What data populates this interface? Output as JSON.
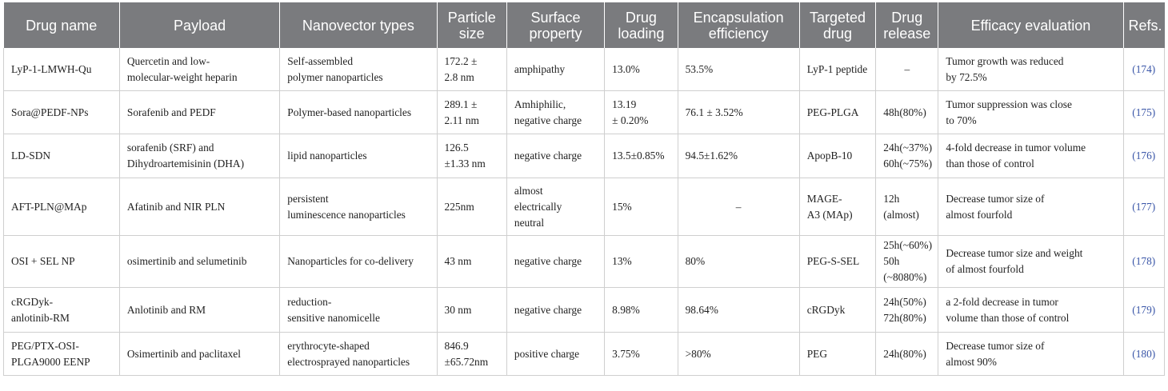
{
  "table": {
    "headers": [
      "Drug name",
      "Payload",
      "Nanovector types",
      "Particle size",
      "Surface property",
      "Drug loading",
      "Encapsulation efficiency",
      "Targeted drug",
      "Drug release",
      "Efficacy evaluation",
      "Refs."
    ],
    "rows": [
      {
        "drug_name": [
          "LyP-1-LMWH-Qu"
        ],
        "payload": [
          "Quercetin and low-",
          "molecular-weight heparin"
        ],
        "nanovector": [
          "Self-assembled",
          "polymer nanoparticles"
        ],
        "particle_size": [
          "172.2 ±",
          "2.8 nm"
        ],
        "surface": [
          "amphipathy"
        ],
        "loading": [
          "13.0%"
        ],
        "encapsulation": [
          "53.5%"
        ],
        "targeted": [
          "LyP-1 peptide"
        ],
        "release": [
          "–"
        ],
        "efficacy": [
          "Tumor growth was reduced",
          "by 72.5%"
        ],
        "ref": "(174)"
      },
      {
        "drug_name": [
          "Sora@PEDF-NPs"
        ],
        "payload": [
          "Sorafenib and PEDF"
        ],
        "nanovector": [
          "Polymer-based nanoparticles"
        ],
        "particle_size": [
          "289.1 ±",
          "2.11 nm"
        ],
        "surface": [
          "Amhiphilic,",
          "negative charge"
        ],
        "loading": [
          "13.19",
          "± 0.20%"
        ],
        "encapsulation": [
          "76.1 ± 3.52%"
        ],
        "targeted": [
          "PEG-PLGA"
        ],
        "release": [
          "48h(80%)"
        ],
        "efficacy": [
          "Tumor suppression was close",
          "to 70%"
        ],
        "ref": "(175)"
      },
      {
        "drug_name": [
          "LD-SDN"
        ],
        "payload": [
          "sorafenib (SRF) and",
          "Dihydroartemisinin (DHA)"
        ],
        "nanovector": [
          "lipid nanoparticles"
        ],
        "particle_size": [
          "126.5",
          "±1.33 nm"
        ],
        "surface": [
          "negative charge"
        ],
        "loading": [
          "13.5±0.85%"
        ],
        "encapsulation": [
          "94.5±1.62%"
        ],
        "targeted": [
          "ApopB-10"
        ],
        "release": [
          "24h(~37%)",
          "60h(~75%)"
        ],
        "efficacy": [
          "4-fold decrease in tumor volume",
          "than those of control"
        ],
        "ref": "(176)"
      },
      {
        "drug_name": [
          "AFT-PLN@MAp"
        ],
        "payload": [
          "Afatinib and NIR PLN"
        ],
        "nanovector": [
          "persistent",
          "luminescence nanoparticles"
        ],
        "particle_size": [
          "225nm"
        ],
        "surface": [
          "almost",
          "electrically",
          "neutral"
        ],
        "loading": [
          "15%"
        ],
        "encapsulation": [
          "–"
        ],
        "targeted": [
          "MAGE-",
          "A3 (MAp)"
        ],
        "release": [
          "12h",
          "(almost)"
        ],
        "efficacy": [
          "Decrease tumor size of",
          "almost fourfold"
        ],
        "ref": "(177)"
      },
      {
        "drug_name": [
          "OSI + SEL NP"
        ],
        "payload": [
          "osimertinib and selumetinib"
        ],
        "nanovector": [
          "Nanoparticles for co-delivery"
        ],
        "particle_size": [
          "43 nm"
        ],
        "surface": [
          "negative charge"
        ],
        "loading": [
          "13%"
        ],
        "encapsulation": [
          "80%"
        ],
        "targeted": [
          "PEG-S-SEL"
        ],
        "release": [
          "25h(~60%)",
          "50h",
          "(~8080%)"
        ],
        "efficacy": [
          "Decrease tumor size and weight",
          "of almost fourfold"
        ],
        "ref": "(178)"
      },
      {
        "drug_name": [
          "cRGDyk-",
          "anlotinib-RM"
        ],
        "payload": [
          "Anlotinib and RM"
        ],
        "nanovector": [
          "reduction-",
          "sensitive nanomicelle"
        ],
        "particle_size": [
          "30 nm"
        ],
        "surface": [
          "negative charge"
        ],
        "loading": [
          "8.98%"
        ],
        "encapsulation": [
          "98.64%"
        ],
        "targeted": [
          "cRGDyk"
        ],
        "release": [
          "24h(50%)",
          "72h(80%)"
        ],
        "efficacy": [
          "a 2-fold decrease in tumor",
          "volume than those of control"
        ],
        "ref": "(179)"
      },
      {
        "drug_name": [
          "PEG/PTX-OSI-",
          "PLGA9000 EENP"
        ],
        "payload": [
          "Osimertinib and paclitaxel"
        ],
        "nanovector": [
          "erythrocyte-shaped",
          "electrosprayed nanoparticles"
        ],
        "particle_size": [
          "846.9",
          "±65.72nm"
        ],
        "surface": [
          "positive charge"
        ],
        "loading": [
          "3.75%"
        ],
        "encapsulation": [
          ">80%"
        ],
        "targeted": [
          "PEG"
        ],
        "release": [
          "24h(80%)"
        ],
        "efficacy": [
          "Decrease tumor size of",
          "almost 90%"
        ],
        "ref": "(180)"
      }
    ]
  }
}
